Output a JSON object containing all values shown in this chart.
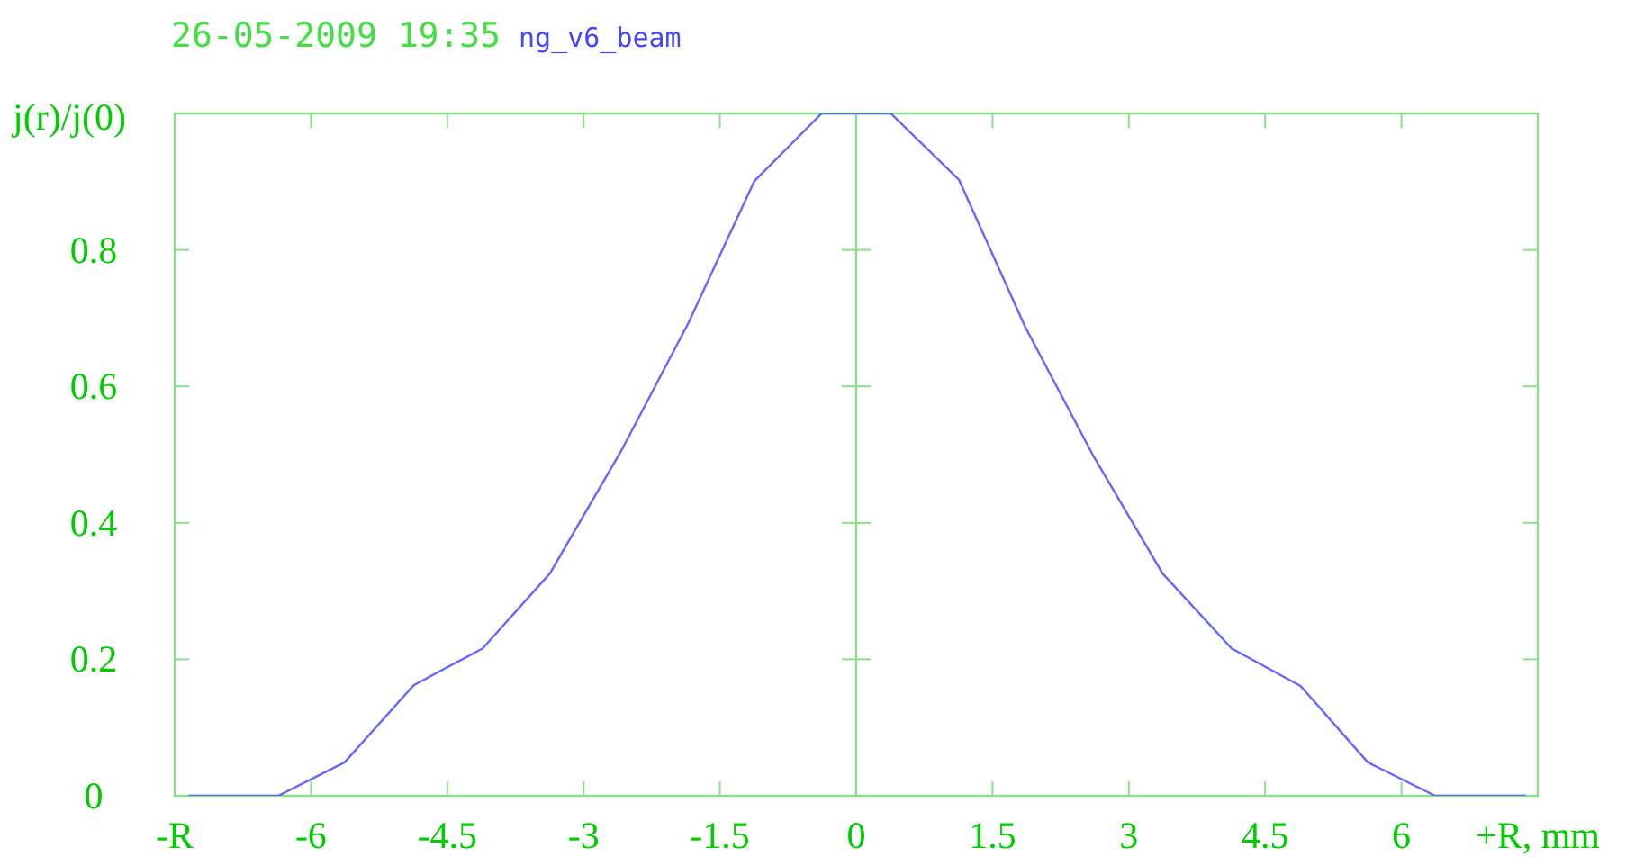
{
  "chart_data": {
    "type": "line",
    "title": "26-05-2009 19:35",
    "subtitle": "ng_v6_beam",
    "ylabel": "j(r)/j(0)",
    "x": [
      -7.35,
      -6.36,
      -5.63,
      -4.87,
      -4.11,
      -3.37,
      -2.58,
      -1.85,
      -1.12,
      -0.38,
      0.38,
      1.13,
      1.86,
      2.61,
      3.37,
      4.13,
      4.89,
      5.63,
      6.37,
      7.37
    ],
    "series": [
      {
        "color": "#6666ff",
        "values": [
          0,
          0,
          0.049,
          0.162,
          0.216,
          0.326,
          0.507,
          0.692,
          0.901,
          1.0,
          1.0,
          0.903,
          0.687,
          0.498,
          0.326,
          0.216,
          0.161,
          0.049,
          0,
          0
        ]
      }
    ],
    "xlim": [
      -7.5,
      7.5
    ],
    "xticks": [
      {
        "value": -7.5,
        "label": "-R"
      },
      -6,
      -4.5,
      -3,
      -1.5,
      0,
      1.5,
      3,
      4.5,
      6,
      {
        "value": 7.5,
        "label": "+R, mm"
      }
    ],
    "ylim": [
      0,
      1
    ],
    "yticks": [
      0,
      0.2,
      0.4,
      0.6,
      0.8
    ],
    "ref_lines": [
      {
        "axis": "x",
        "value": 0,
        "color": "#88e088"
      }
    ],
    "grid": false,
    "marker": "none",
    "line_style": "solid"
  }
}
